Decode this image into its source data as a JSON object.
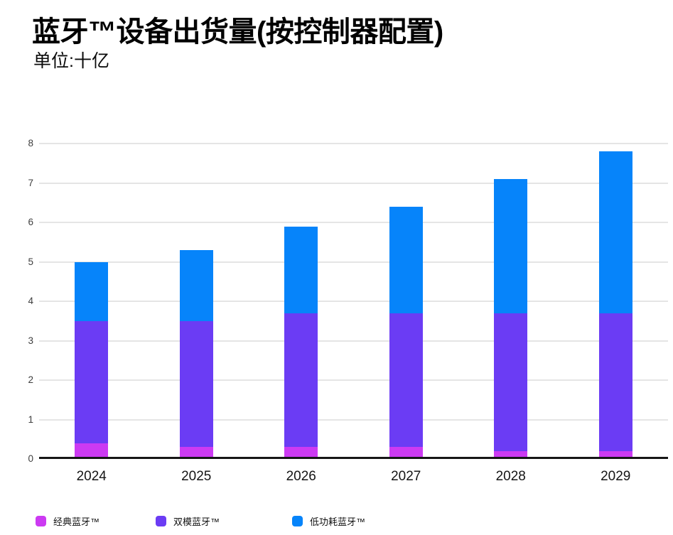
{
  "header": {
    "title": "蓝牙™设备出货量(按控制器配置)",
    "subtitle": "单位:十亿"
  },
  "chart_data": {
    "type": "bar",
    "stacked": true,
    "title": "蓝牙™设备出货量(按控制器配置)",
    "subtitle": "单位:十亿",
    "categories": [
      "2024",
      "2025",
      "2026",
      "2027",
      "2028",
      "2029"
    ],
    "series": [
      {
        "name": "经典蓝牙™",
        "color": "#cc3af2",
        "values": [
          0.4,
          0.3,
          0.3,
          0.3,
          0.2,
          0.2
        ]
      },
      {
        "name": "双模蓝牙™",
        "color": "#6b3cf4",
        "values": [
          3.1,
          3.2,
          3.4,
          3.4,
          3.5,
          3.5
        ]
      },
      {
        "name": "低功耗蓝牙™",
        "color": "#0684fa",
        "values": [
          1.5,
          1.8,
          2.2,
          2.7,
          3.4,
          4.1
        ]
      }
    ],
    "totals": [
      5.0,
      5.3,
      5.9,
      6.4,
      7.1,
      7.8
    ],
    "xlabel": "",
    "ylabel": "单位:十亿",
    "ylim": [
      0,
      8
    ],
    "yticks": [
      0,
      1,
      2,
      3,
      4,
      5,
      6,
      7,
      8
    ],
    "grid": true,
    "legend_position": "bottom"
  },
  "style": {
    "gridline_color": "#e5e5e5",
    "axis_line_color": "#161616",
    "ytick_color": "#3d3d3d",
    "xtick_color": "#151515",
    "legend_text_color": "#111111",
    "background": "#ffffff"
  },
  "layout": {
    "legend_item_x": [
      50,
      219,
      411
    ]
  }
}
